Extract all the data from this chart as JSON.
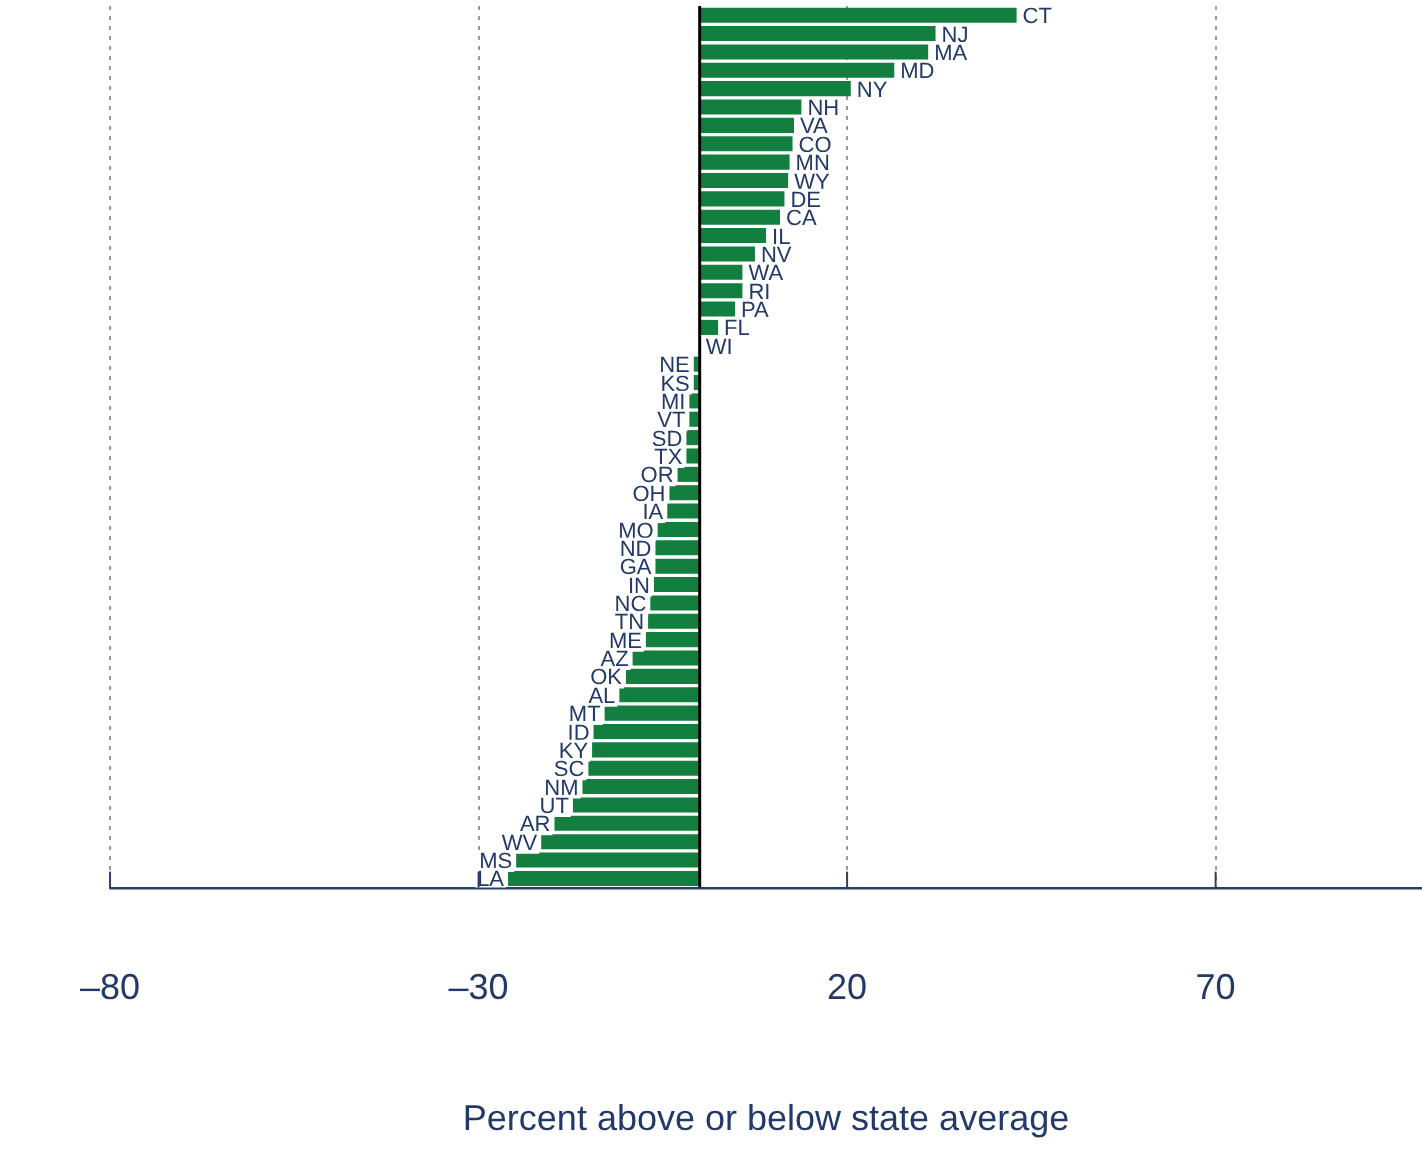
{
  "chart_data": {
    "type": "bar",
    "orientation": "horizontal",
    "xlabel": "Percent above or below state average",
    "categories": [
      "CT",
      "NJ",
      "MA",
      "MD",
      "NY",
      "NH",
      "VA",
      "CO",
      "MN",
      "WY",
      "DE",
      "CA",
      "IL",
      "NV",
      "WA",
      "RI",
      "PA",
      "FL",
      "WI",
      "NE",
      "KS",
      "MI",
      "VT",
      "SD",
      "TX",
      "OR",
      "OH",
      "IA",
      "MO",
      "ND",
      "GA",
      "IN",
      "NC",
      "TN",
      "ME",
      "AZ",
      "OK",
      "AL",
      "MT",
      "ID",
      "KY",
      "SC",
      "NM",
      "UT",
      "AR",
      "WV",
      "MS",
      "LA"
    ],
    "series": [
      {
        "color": "#137f3f",
        "values": [
          43,
          32,
          31,
          26.4,
          20.5,
          13.8,
          12.8,
          12.6,
          12.2,
          12,
          11.5,
          10.9,
          9,
          7.5,
          5.8,
          5.8,
          4.8,
          2.5,
          0,
          -0.8,
          -0.8,
          -1.4,
          -1.4,
          -1.8,
          -1.8,
          -3,
          -4.1,
          -4.4,
          -5.7,
          -6,
          -6,
          -6.2,
          -6.7,
          -7,
          -7.3,
          -9.1,
          -10,
          -10.9,
          -12.9,
          -14.4,
          -14.6,
          -15.1,
          -15.9,
          -17.2,
          -19.7,
          -21.5,
          -24.9,
          -26
        ]
      }
    ],
    "xlim": [
      -80,
      98
    ],
    "xticks": [
      {
        "value": -80,
        "label": "–80"
      },
      {
        "value": -30,
        "label": "–30"
      },
      20,
      70
    ],
    "grid": "x"
  }
}
